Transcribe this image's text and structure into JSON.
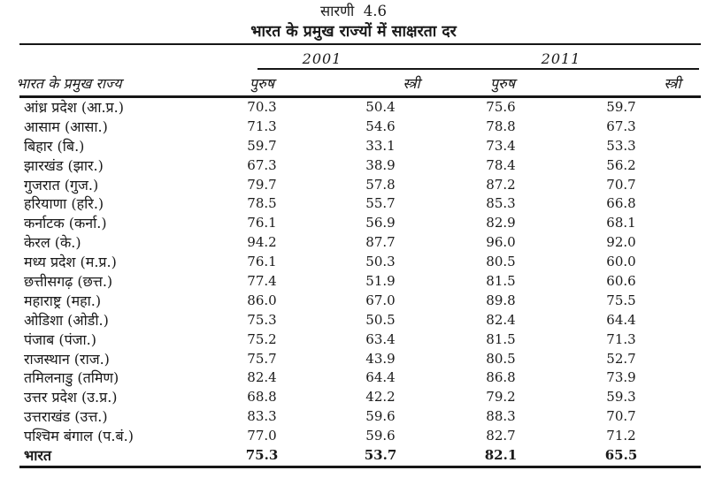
{
  "title": "सारणी  4.6",
  "subtitle": "भारत के प्रमुख राज्यों में साक्षरता दर",
  "table": {
    "state_col_header": "भारत के प्रमुख राज्य",
    "year_groups": [
      {
        "label": "2001"
      },
      {
        "label": "2011"
      }
    ],
    "sub_headers": [
      "पुरुष",
      "स्त्री",
      "पुरुष",
      "स्त्री"
    ],
    "rows": [
      {
        "state": "आंध्र प्रदेश (आ.प्र.)",
        "values": [
          "70.3",
          "50.4",
          "75.6",
          "59.7"
        ],
        "bold": false
      },
      {
        "state": "आसाम (आसा.)",
        "values": [
          "71.3",
          "54.6",
          "78.8",
          "67.3"
        ],
        "bold": false
      },
      {
        "state": "बिहार (बि.)",
        "values": [
          "59.7",
          "33.1",
          "73.4",
          "53.3"
        ],
        "bold": false
      },
      {
        "state": "झारखंड (झार.)",
        "values": [
          "67.3",
          "38.9",
          "78.4",
          "56.2"
        ],
        "bold": false
      },
      {
        "state": "गुजरात (गुज.)",
        "values": [
          "79.7",
          "57.8",
          "87.2",
          "70.7"
        ],
        "bold": false
      },
      {
        "state": "हरियाणा (हरि.)",
        "values": [
          "78.5",
          "55.7",
          "85.3",
          "66.8"
        ],
        "bold": false
      },
      {
        "state": "कर्नाटक (कर्ना.)",
        "values": [
          "76.1",
          "56.9",
          "82.9",
          "68.1"
        ],
        "bold": false
      },
      {
        "state": "केरल (के.)",
        "values": [
          "94.2",
          "87.7",
          "96.0",
          "92.0"
        ],
        "bold": false
      },
      {
        "state": "मध्य प्रदेश (म.प्र.)",
        "values": [
          "76.1",
          "50.3",
          "80.5",
          "60.0"
        ],
        "bold": false
      },
      {
        "state": "छत्तीसगढ़ (छत्त.)",
        "values": [
          "77.4",
          "51.9",
          "81.5",
          "60.6"
        ],
        "bold": false
      },
      {
        "state": "महाराष्ट्र (महा.)",
        "values": [
          "86.0",
          "67.0",
          "89.8",
          "75.5"
        ],
        "bold": false
      },
      {
        "state": "ओडिशा (ओडी.)",
        "values": [
          "75.3",
          "50.5",
          "82.4",
          "64.4"
        ],
        "bold": false
      },
      {
        "state": "पंजाब (पंजा.)",
        "values": [
          "75.2",
          "63.4",
          "81.5",
          "71.3"
        ],
        "bold": false
      },
      {
        "state": "राजस्थान (राज.)",
        "values": [
          "75.7",
          "43.9",
          "80.5",
          "52.7"
        ],
        "bold": false
      },
      {
        "state": "तमिलनाडु (तमिण)",
        "values": [
          "82.4",
          "64.4",
          "86.8",
          "73.9"
        ],
        "bold": false
      },
      {
        "state": "उत्तर प्रदेश (उ.प्र.)",
        "values": [
          "68.8",
          "42.2",
          "79.2",
          "59.3"
        ],
        "bold": false
      },
      {
        "state": "उत्तराखंड (उत्त.)",
        "values": [
          "83.3",
          "59.6",
          "88.3",
          "70.7"
        ],
        "bold": false
      },
      {
        "state": "पश्चिम बंगाल (प.बं.)",
        "values": [
          "77.0",
          "59.6",
          "82.7",
          "71.2"
        ],
        "bold": false
      },
      {
        "state": "भारत",
        "values": [
          "75.3",
          "53.7",
          "82.1",
          "65.5"
        ],
        "bold": true
      }
    ]
  }
}
